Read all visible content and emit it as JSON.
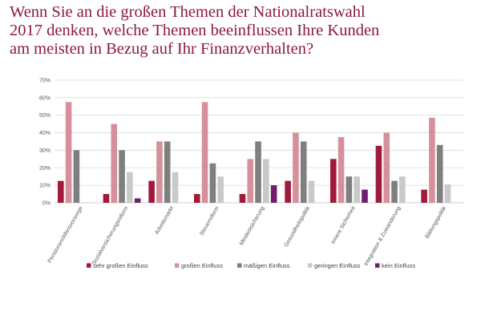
{
  "title_lines": [
    "Wenn Sie an die großen Themen der Nationalratswahl",
    "2017 denken, welche Themen beeinflussen Ihre Kunden",
    "am meisten in Bezug auf Ihr Finanzverhalten?"
  ],
  "colors": {
    "title": "#8b1a3c",
    "grid": "#d9d9d9",
    "axis": "#bfbfbf"
  },
  "chart_data": {
    "type": "bar",
    "title": "Wenn Sie an die großen Themen der Nationalratswahl 2017 denken, welche Themen beeinflussen Ihre Kunden am meisten in Bezug auf Ihr Finanzverhalten?",
    "xlabel": "",
    "ylabel": "",
    "ylim": [
      0,
      70
    ],
    "yticks": [
      "0%",
      "10%",
      "20%",
      "30%",
      "40%",
      "50%",
      "60%",
      "70%"
    ],
    "grid": true,
    "legend_position": "bottom",
    "categories": [
      "Pensionen/Altersvorsorge",
      "Sozialversicherungsreform",
      "Arbeitsmarkt",
      "Steuerreform",
      "Mindestsicherung",
      "Gesundheitspolitik",
      "Innere Sicherheit",
      "Integration & Zuwanderung",
      "Bildungspolitik"
    ],
    "series": [
      {
        "name": "sehr großen Einfluss",
        "color": "#a01b3b",
        "values": [
          12.5,
          5,
          12.5,
          5,
          5,
          12.5,
          25,
          32.5,
          7.5
        ]
      },
      {
        "name": "großen Einfluss",
        "color": "#d6909c",
        "values": [
          57.5,
          45,
          35,
          57.5,
          25,
          40,
          37.5,
          40,
          48.5
        ]
      },
      {
        "name": "mäßigen Einfluss",
        "color": "#7f7f7f",
        "values": [
          30,
          30,
          35,
          22.5,
          35,
          35,
          15,
          12.5,
          33
        ]
      },
      {
        "name": "geringen Einfluss",
        "color": "#c9c9c9",
        "values": [
          0,
          17.5,
          17.5,
          15,
          25,
          12.5,
          15,
          15,
          10.5
        ]
      },
      {
        "name": "kein Einfluss",
        "color": "#6e1f6e",
        "values": [
          0,
          2.5,
          0,
          0,
          10,
          0,
          7.5,
          0,
          0
        ]
      }
    ]
  }
}
